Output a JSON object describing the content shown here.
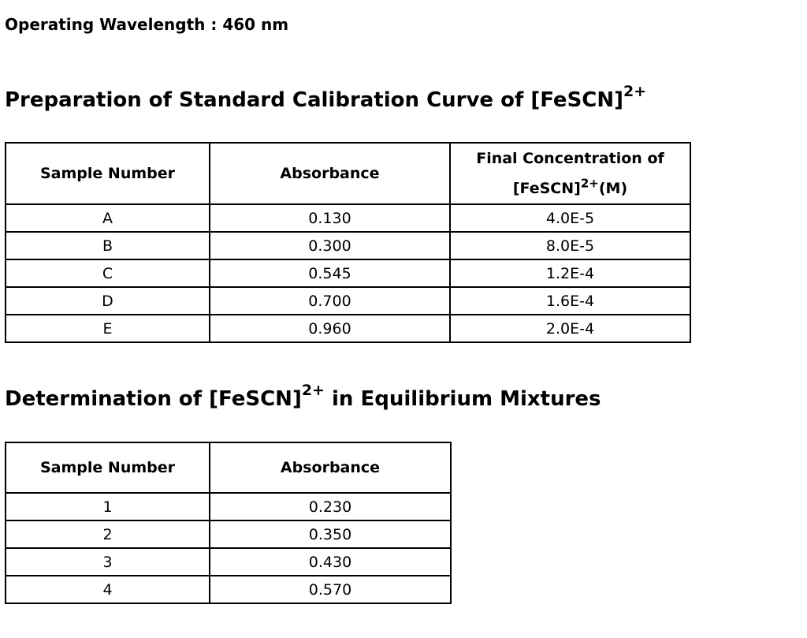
{
  "wavelength": "Operating Wavelength : 460 nm",
  "calibration": {
    "title": "Preparation of Standard Calibration Curve of [FeSCN]",
    "title_sup": "2+",
    "headers": {
      "sample": "Sample Number",
      "absorbance": "Absorbance",
      "conc_line1": "Final Concentration of",
      "conc_base": "[FeSCN]",
      "conc_sup": "2+",
      "conc_unit": "(M)"
    },
    "rows": [
      {
        "sample": "A",
        "absorbance": "0.130",
        "concentration": "4.0E-5"
      },
      {
        "sample": "B",
        "absorbance": "0.300",
        "concentration": "8.0E-5"
      },
      {
        "sample": "C",
        "absorbance": "0.545",
        "concentration": "1.2E-4"
      },
      {
        "sample": "D",
        "absorbance": "0.700",
        "concentration": "1.6E-4"
      },
      {
        "sample": "E",
        "absorbance": "0.960",
        "concentration": "2.0E-4"
      }
    ]
  },
  "equilibrium": {
    "title_pre": "Determination of [FeSCN]",
    "title_sup": "2+",
    "title_post": " in Equilibrium Mixtures",
    "headers": {
      "sample": "Sample Number",
      "absorbance": "Absorbance"
    },
    "rows": [
      {
        "sample": "1",
        "absorbance": "0.230"
      },
      {
        "sample": "2",
        "absorbance": "0.350"
      },
      {
        "sample": "3",
        "absorbance": "0.430"
      },
      {
        "sample": "4",
        "absorbance": "0.570"
      }
    ]
  }
}
